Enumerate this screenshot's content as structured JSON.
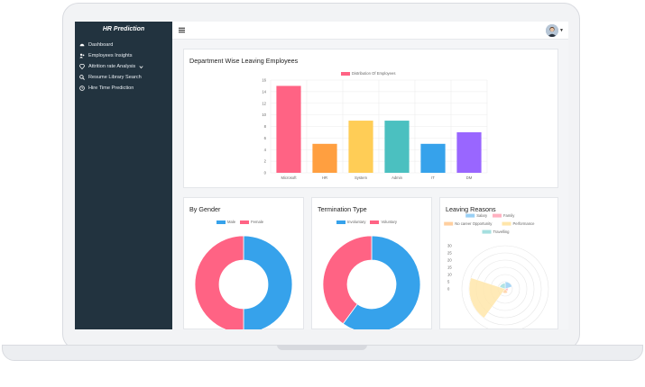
{
  "app": {
    "title": "HR Prediction"
  },
  "sidebar": {
    "items": [
      {
        "label": "Dashboard",
        "icon": "dashboard-icon"
      },
      {
        "label": "Employees Insights",
        "icon": "users-icon"
      },
      {
        "label": "Attrition rate Analysis",
        "icon": "diamond-icon",
        "has_caret": true
      },
      {
        "label": "Resume Library Search",
        "icon": "search-icon"
      },
      {
        "label": "Hire Time Prediction",
        "icon": "clock-icon"
      }
    ]
  },
  "colors": {
    "sidebar_bg": "#22333f",
    "pink": "#ff6384",
    "orange": "#ff9f40",
    "yellow": "#ffcd56",
    "teal": "#4bc0c0",
    "blue": "#36a2eb",
    "purple": "#9966ff"
  },
  "cards": {
    "department": {
      "title": "Department Wise Leaving Employees"
    },
    "gender": {
      "title": "By Gender"
    },
    "termination": {
      "title": "Termination Type"
    },
    "reasons": {
      "title": "Leaving Reasons"
    }
  },
  "chart_data": [
    {
      "type": "bar",
      "categories": [
        "Microsoft",
        "HR",
        "System",
        "Admin",
        "IT",
        "DM"
      ],
      "series": [
        {
          "name": "Distribution Of Employees",
          "values": [
            15,
            5,
            9,
            9,
            5,
            7
          ]
        }
      ],
      "colors": [
        "#ff6384",
        "#ff9f40",
        "#ffcd56",
        "#4bc0c0",
        "#36a2eb",
        "#9966ff"
      ],
      "yticks": [
        0,
        2,
        4,
        6,
        8,
        10,
        12,
        14,
        16
      ],
      "ylim": [
        0,
        16
      ],
      "grid": true,
      "legend": "top-center"
    },
    {
      "type": "pie",
      "variant": "doughnut",
      "labels": [
        "Male",
        "Female"
      ],
      "values": [
        50,
        50
      ],
      "colors": [
        "#36a2eb",
        "#ff6384"
      ],
      "legend": "top-center"
    },
    {
      "type": "pie",
      "variant": "doughnut",
      "labels": [
        "Involuntary",
        "Voluntary"
      ],
      "values": [
        60,
        40
      ],
      "colors": [
        "#36a2eb",
        "#ff6384"
      ],
      "legend": "top-center"
    },
    {
      "type": "polarArea",
      "labels": [
        "Salary",
        "Family",
        "No career Opportunity",
        "Performance",
        "Travelling"
      ],
      "values": [
        5,
        2,
        3,
        25,
        4
      ],
      "colors": [
        "#9ad0f5",
        "#ffb1c1",
        "#ffcf9f",
        "#ffe6aa",
        "#a5dfdf"
      ],
      "rticks": [
        0,
        5,
        10,
        15,
        20,
        25,
        30
      ],
      "rlim": [
        0,
        30
      ],
      "legend": "top-center"
    }
  ]
}
